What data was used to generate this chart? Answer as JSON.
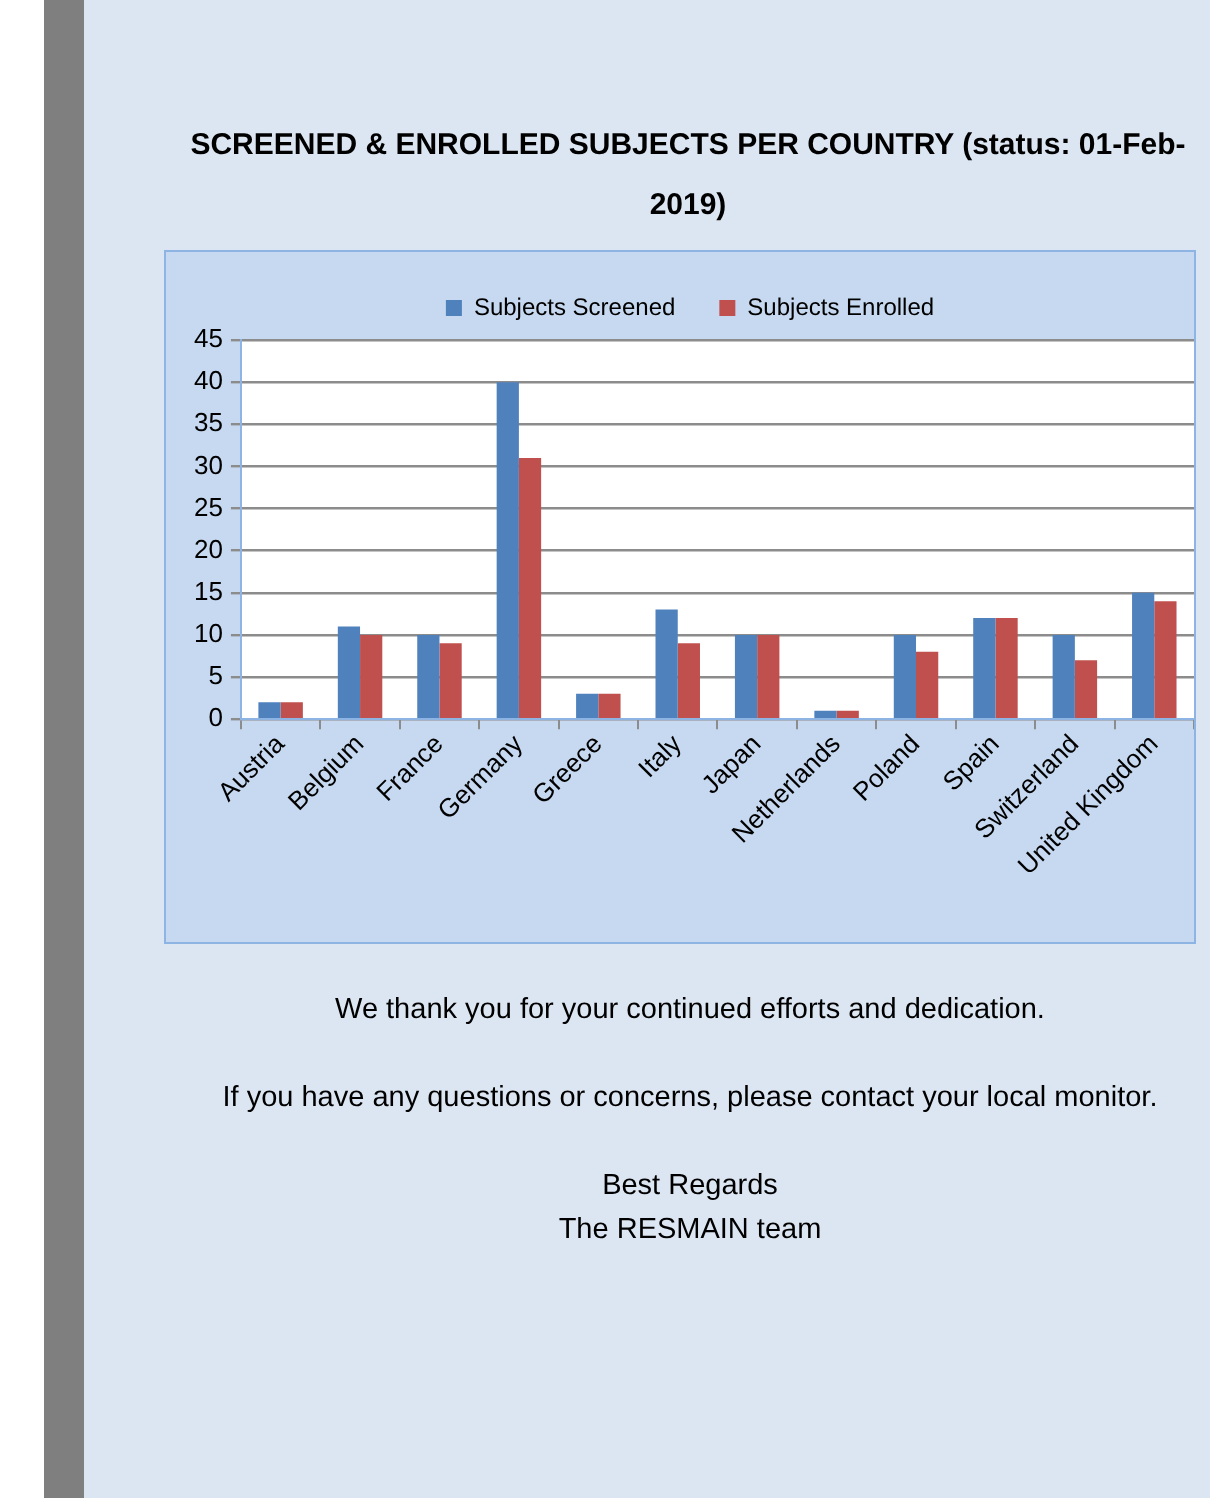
{
  "chart_data": {
    "type": "bar",
    "title": "SCREENED & ENROLLED SUBJECTS PER COUNTRY (status: 01-Feb-2019)",
    "categories": [
      "Austria",
      "Belgium",
      "France",
      "Germany",
      "Greece",
      "Italy",
      "Japan",
      "Netherlands",
      "Poland",
      "Spain",
      "Switzerland",
      "United Kingdom"
    ],
    "series": [
      {
        "name": "Subjects Screened",
        "color": "#4f81bd",
        "values": [
          2,
          11,
          10,
          40,
          3,
          13,
          10,
          1,
          10,
          12,
          10,
          15
        ]
      },
      {
        "name": "Subjects Enrolled",
        "color": "#c0504d",
        "values": [
          2,
          10,
          9,
          31,
          3,
          9,
          10,
          1,
          8,
          12,
          7,
          14
        ]
      }
    ],
    "ylim": [
      0,
      45
    ],
    "yticks": [
      0,
      5,
      10,
      15,
      20,
      25,
      30,
      35,
      40,
      45
    ],
    "grid": "y",
    "legend": "top",
    "annotations": [
      "We thank you for your continued efforts and dedication.",
      "If you have any questions or concerns, please contact your local monitor.",
      "Best Regards",
      "The RESMAIN team"
    ]
  }
}
